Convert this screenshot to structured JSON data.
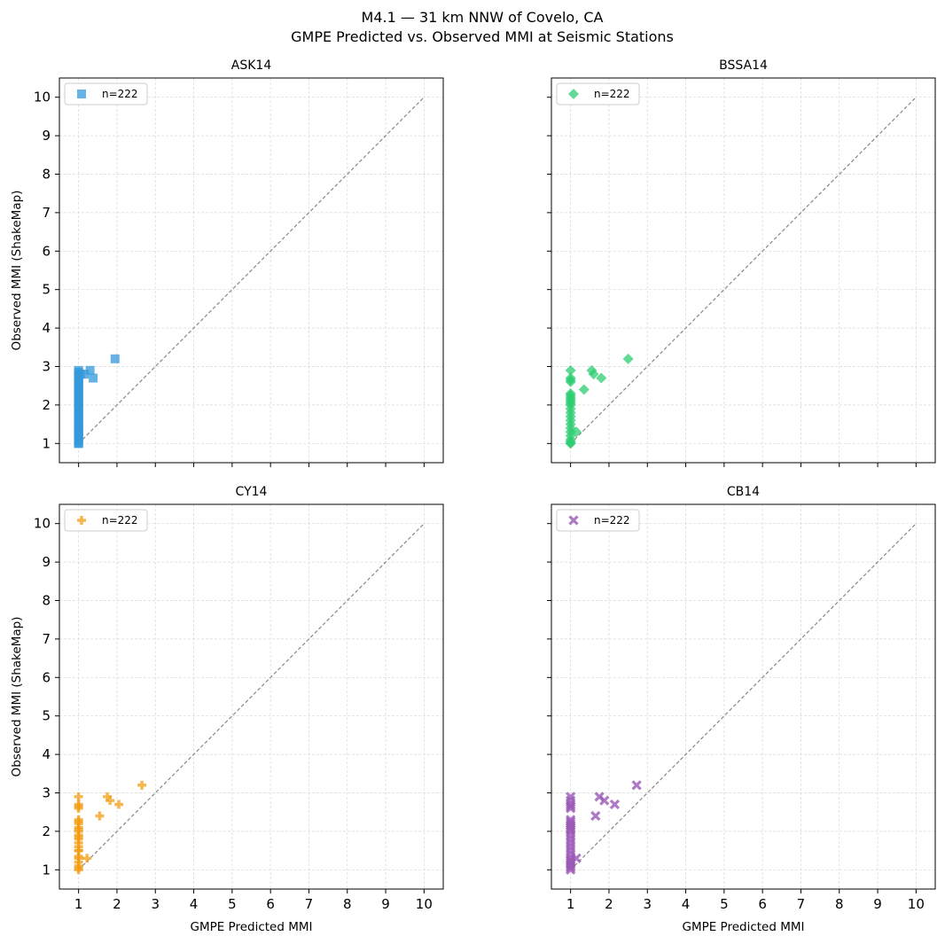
{
  "figure": {
    "title_line1": "M4.1 — 31 km NNW of Covelo, CA",
    "title_line2": "GMPE Predicted vs. Observed MMI at Seismic Stations"
  },
  "chart_data": [
    {
      "type": "scatter",
      "title": "ASK14",
      "xlabel": "",
      "ylabel": "Observed MMI (ShakeMap)",
      "xlim": [
        0.5,
        10.5
      ],
      "ylim": [
        0.5,
        10.5
      ],
      "grid": true,
      "legend_position": "top-left",
      "marker": "square",
      "color": "#3498db",
      "series": [
        {
          "name": "n=222",
          "x": [
            1,
            1,
            1,
            1,
            1,
            1,
            1,
            1,
            1,
            1,
            1,
            1,
            1,
            1,
            1,
            1,
            1,
            1,
            1,
            1,
            1,
            1,
            1,
            1,
            1,
            1,
            1,
            1,
            1,
            1,
            1,
            1,
            1,
            1,
            1,
            1,
            1,
            1,
            1,
            1,
            1,
            1.05,
            1.15,
            1.3,
            1.38,
            1.95
          ],
          "y": [
            1.0,
            1.05,
            1.1,
            1.15,
            1.2,
            1.25,
            1.3,
            1.35,
            1.4,
            1.45,
            1.5,
            1.55,
            1.6,
            1.65,
            1.7,
            1.75,
            1.8,
            1.85,
            1.9,
            1.95,
            2.0,
            2.05,
            2.1,
            2.15,
            2.2,
            2.25,
            2.3,
            2.35,
            2.4,
            2.45,
            2.5,
            2.55,
            2.6,
            2.65,
            2.7,
            2.75,
            2.8,
            2.85,
            2.9,
            1.0,
            1.3,
            2.8,
            2.8,
            2.9,
            2.7,
            3.2
          ]
        }
      ],
      "reference_line": {
        "x": [
          1,
          10
        ],
        "y": [
          1,
          10
        ]
      }
    },
    {
      "type": "scatter",
      "title": "BSSA14",
      "xlabel": "",
      "ylabel": "",
      "xlim": [
        0.5,
        10.5
      ],
      "ylim": [
        0.5,
        10.5
      ],
      "grid": true,
      "legend_position": "top-left",
      "marker": "diamond",
      "color": "#2ecc71",
      "series": [
        {
          "name": "n=222",
          "x": [
            1,
            1,
            1,
            1,
            1,
            1,
            1,
            1,
            1,
            1,
            1,
            1,
            1,
            1,
            1,
            1,
            1,
            1,
            1,
            1,
            1,
            1,
            1,
            1.15,
            1.35,
            1.55,
            1.6,
            1.8,
            2.5
          ],
          "y": [
            1.0,
            1.05,
            1.1,
            1.2,
            1.3,
            1.4,
            1.5,
            1.6,
            1.7,
            1.8,
            1.9,
            2.0,
            2.05,
            2.1,
            2.15,
            2.2,
            2.25,
            2.3,
            2.6,
            2.65,
            2.7,
            2.9,
            1.0,
            1.3,
            2.4,
            2.9,
            2.8,
            2.7,
            3.2
          ]
        }
      ],
      "reference_line": {
        "x": [
          1,
          10
        ],
        "y": [
          1,
          10
        ]
      }
    },
    {
      "type": "scatter",
      "title": "CY14",
      "xlabel": "GMPE Predicted MMI",
      "ylabel": "Observed MMI (ShakeMap)",
      "xlim": [
        0.5,
        10.5
      ],
      "ylim": [
        0.5,
        10.5
      ],
      "grid": true,
      "legend_position": "top-left",
      "marker": "plus",
      "color": "#f39c12",
      "series": [
        {
          "name": "n=222",
          "x": [
            1,
            1,
            1,
            1,
            1,
            1,
            1,
            1,
            1,
            1,
            1,
            1,
            1,
            1,
            1,
            1,
            1,
            1,
            1,
            1,
            1,
            1,
            1,
            1.22,
            1.55,
            1.75,
            1.82,
            2.05,
            2.65
          ],
          "y": [
            1.0,
            1.05,
            1.1,
            1.3,
            1.35,
            1.5,
            1.6,
            1.7,
            1.8,
            1.9,
            2.0,
            2.05,
            2.1,
            2.2,
            2.25,
            2.3,
            2.6,
            2.65,
            2.7,
            2.9,
            1.2,
            1.5,
            1.85,
            1.3,
            2.4,
            2.9,
            2.8,
            2.7,
            3.2
          ]
        }
      ],
      "reference_line": {
        "x": [
          1,
          10
        ],
        "y": [
          1,
          10
        ]
      }
    },
    {
      "type": "scatter",
      "title": "CB14",
      "xlabel": "GMPE Predicted MMI",
      "ylabel": "",
      "xlim": [
        0.5,
        10.5
      ],
      "ylim": [
        0.5,
        10.5
      ],
      "grid": true,
      "legend_position": "top-left",
      "marker": "x",
      "color": "#9b59b6",
      "series": [
        {
          "name": "n=222",
          "x": [
            1,
            1,
            1,
            1,
            1,
            1,
            1,
            1,
            1,
            1,
            1,
            1,
            1,
            1,
            1,
            1,
            1,
            1,
            1,
            1,
            1,
            1,
            1,
            1,
            1,
            1.15,
            1.65,
            1.75,
            1.88,
            2.15,
            2.72
          ],
          "y": [
            1.0,
            1.05,
            1.1,
            1.15,
            1.2,
            1.25,
            1.3,
            1.4,
            1.5,
            1.6,
            1.7,
            1.8,
            1.9,
            2.0,
            2.05,
            2.1,
            2.15,
            2.2,
            2.25,
            2.3,
            2.6,
            2.65,
            2.7,
            2.8,
            2.9,
            1.3,
            2.4,
            2.9,
            2.8,
            2.7,
            3.2
          ]
        }
      ],
      "reference_line": {
        "x": [
          1,
          10
        ],
        "y": [
          1,
          10
        ]
      }
    }
  ],
  "axis_ticks": {
    "x": [
      1,
      2,
      3,
      4,
      5,
      6,
      7,
      8,
      9,
      10
    ],
    "y": [
      1,
      2,
      3,
      4,
      5,
      6,
      7,
      8,
      9,
      10
    ]
  }
}
